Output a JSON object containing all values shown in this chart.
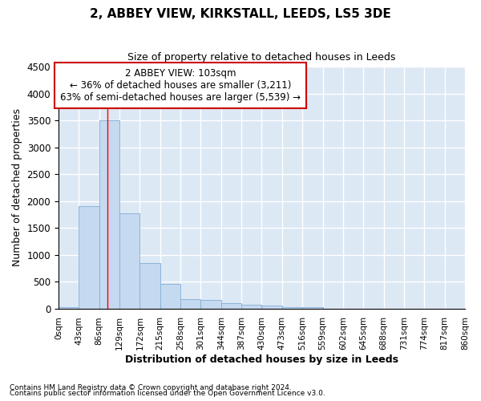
{
  "title": "2, ABBEY VIEW, KIRKSTALL, LEEDS, LS5 3DE",
  "subtitle": "Size of property relative to detached houses in Leeds",
  "xlabel": "Distribution of detached houses by size in Leeds",
  "ylabel": "Number of detached properties",
  "bar_color": "#c5d9f0",
  "bar_edge_color": "#8ab4d8",
  "background_color": "#dde8f5",
  "grid_color": "#ffffff",
  "ylim": [
    0,
    4500
  ],
  "yticks": [
    0,
    500,
    1000,
    1500,
    2000,
    2500,
    3000,
    3500,
    4000,
    4500
  ],
  "bin_edges": [
    0,
    43,
    86,
    129,
    172,
    215,
    258,
    301,
    344,
    387,
    430,
    473,
    516,
    559,
    602,
    645,
    688,
    731,
    774,
    817,
    860
  ],
  "bar_heights": [
    30,
    1900,
    3500,
    1775,
    850,
    450,
    175,
    165,
    95,
    70,
    50,
    25,
    18,
    0,
    0,
    0,
    0,
    0,
    0,
    0
  ],
  "red_line_x": 103,
  "annotation_line1": "2 ABBEY VIEW: 103sqm",
  "annotation_line2": "← 36% of detached houses are smaller (3,211)",
  "annotation_line3": "63% of semi-detached houses are larger (5,539) →",
  "annotation_box_color": "#cc0000",
  "footnote1": "Contains HM Land Registry data © Crown copyright and database right 2024.",
  "footnote2": "Contains public sector information licensed under the Open Government Licence v3.0."
}
